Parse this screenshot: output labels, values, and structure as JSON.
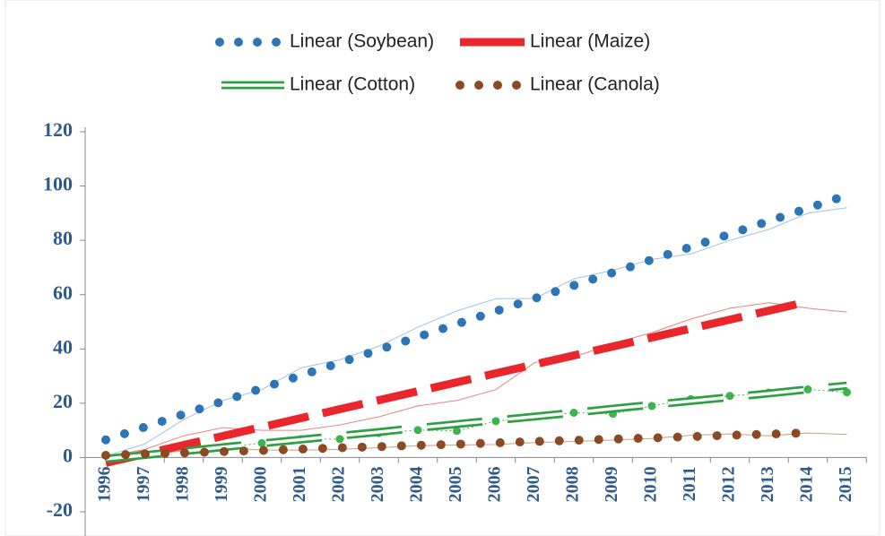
{
  "chart_data": {
    "type": "line",
    "categories": [
      "1996",
      "1997",
      "1998",
      "1999",
      "2000",
      "2001",
      "2002",
      "2003",
      "2004",
      "2005",
      "2006",
      "2007",
      "2008",
      "2009",
      "2010",
      "2011",
      "2012",
      "2013",
      "2014",
      "2015"
    ],
    "ylim": [
      -20,
      120
    ],
    "yticks": [
      -20,
      0,
      20,
      40,
      60,
      80,
      100,
      120
    ],
    "legend": "top",
    "series": [
      {
        "color": "#9dc3e6",
        "style": "thin",
        "values": [
          0.5,
          5,
          14,
          21,
          25,
          33,
          36,
          41,
          48,
          54,
          58.5,
          58.6,
          65.8,
          69,
          73,
          75,
          80,
          84,
          90,
          92
        ]
      },
      {
        "color": "#f08080",
        "style": "thin",
        "values": [
          0.3,
          3,
          8,
          11,
          10,
          10,
          12,
          15,
          19,
          21,
          25,
          35,
          37,
          42,
          46,
          51,
          55,
          57,
          55,
          53.6
        ]
      },
      {
        "color": "#3cb44b",
        "style": "thin-markers",
        "values": [
          0.8,
          1.4,
          2.5,
          3.7,
          5.3,
          6.8,
          6.8,
          9,
          10.1,
          9.8,
          13.4,
          15,
          16.5,
          16.1,
          19,
          21.5,
          22.7,
          23.9,
          25.1,
          24
        ]
      },
      {
        "color": "#c8a080",
        "style": "thin",
        "values": [
          0.1,
          1.2,
          2.4,
          3.4,
          2.8,
          2.7,
          3,
          3.6,
          4.3,
          4.6,
          4.8,
          5.5,
          5.9,
          6.4,
          7,
          8.2,
          8.7,
          8,
          9,
          8.5
        ]
      },
      {
        "name": "Linear (Soybean)",
        "color": "#2e75b6",
        "style": "dotted",
        "values": [
          6.5,
          11.2,
          16.0,
          20.7,
          25.5,
          30.2,
          34.9,
          39.7,
          44.4,
          49.2,
          53.9,
          58.6,
          63.4,
          68.1,
          72.9,
          77.6,
          82.3,
          87.1,
          91.8,
          96.6
        ]
      },
      {
        "name": "Linear (Maize)",
        "color": "#e8262b",
        "style": "dashed",
        "values": [
          -2,
          1.3,
          4.6,
          7.9,
          11.2,
          14.5,
          17.8,
          21.1,
          24.4,
          27.7,
          31,
          34.3,
          37.6,
          40.9,
          44.2,
          47.5,
          50.8,
          54.1,
          57.4,
          null
        ]
      },
      {
        "name": "Linear (Cotton)",
        "color": "#2ea043",
        "style": "double",
        "values": [
          -0.5,
          0.9,
          2.3,
          3.8,
          5.2,
          6.6,
          8.0,
          9.4,
          10.9,
          12.3,
          13.7,
          15.1,
          16.5,
          18.0,
          19.4,
          20.8,
          22.2,
          23.6,
          25.1,
          26.5
        ]
      },
      {
        "name": "Linear (Canola)",
        "color": "#8b4a24",
        "style": "dotted",
        "values": [
          0.8,
          1.3,
          1.7,
          2.2,
          2.6,
          3.1,
          3.6,
          4.0,
          4.5,
          4.9,
          5.4,
          5.9,
          6.3,
          6.8,
          7.2,
          7.7,
          8.2,
          8.6,
          9.1,
          null
        ]
      }
    ]
  }
}
